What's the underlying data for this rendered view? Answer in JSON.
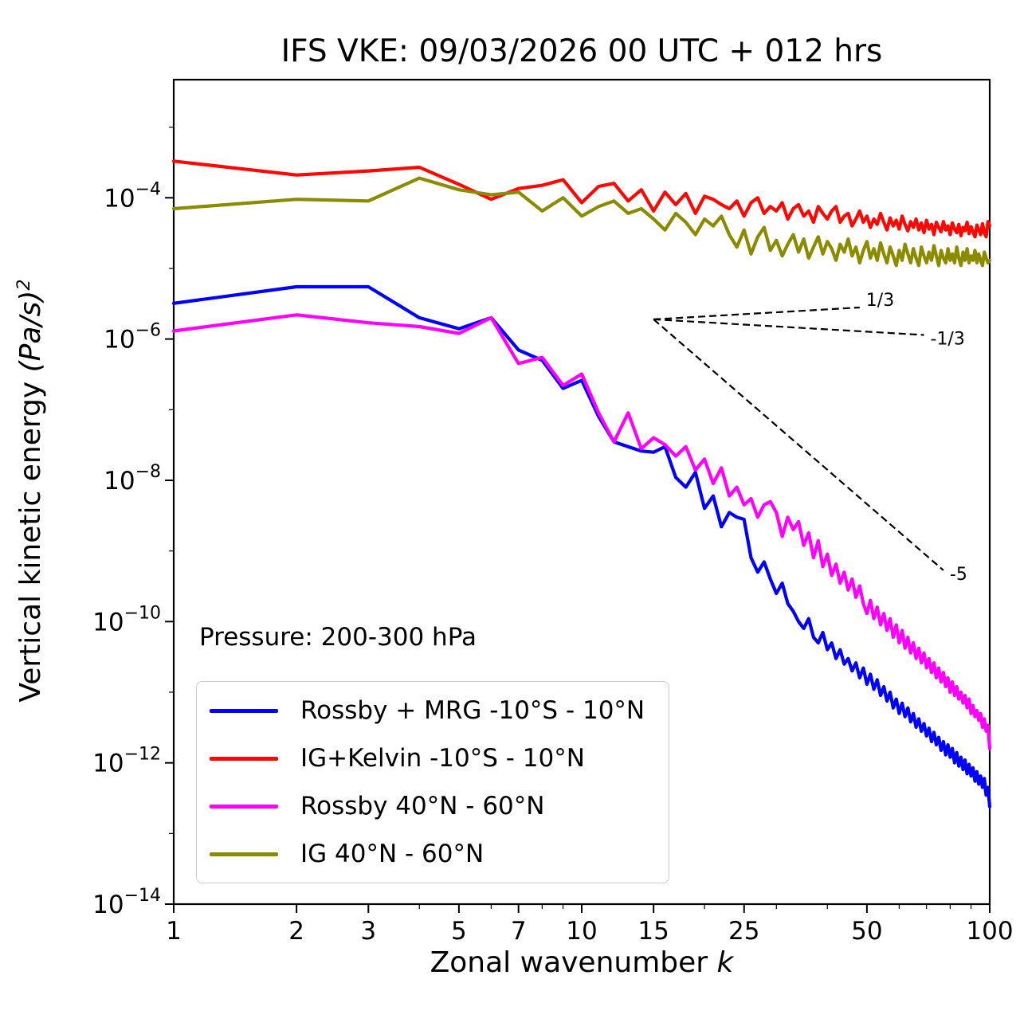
{
  "chart_data": {
    "type": "line",
    "title": "IFS VKE: 09/03/2026 00 UTC + 012 hrs",
    "xlabel_main": "Zonal wavenumber ",
    "xlabel_math": "k",
    "ylabel_main": "Vertical kinetic energy ",
    "ylabel_math": "(Pa/s)",
    "ylabel_sup": "2",
    "annotation": "Pressure: 200-300 hPa",
    "x_scale": "log",
    "y_scale": "log",
    "grid": false,
    "legend_position": "lower left",
    "xlim": [
      1,
      100
    ],
    "ylim": [
      1e-14,
      0.0047
    ],
    "x_ticks": [
      1,
      2,
      3,
      5,
      7,
      10,
      15,
      25,
      50,
      100
    ],
    "x_minor_ticks": [
      4,
      6,
      8,
      9,
      20,
      30,
      40,
      60,
      70,
      80,
      90
    ],
    "y_tick_exponents": [
      -4,
      -6,
      -8,
      -10,
      -12,
      -14
    ],
    "y_minor_tick_exponents": [
      -3,
      -5,
      -7,
      -9,
      -11,
      -13
    ],
    "axis_color": "#000000",
    "x": [
      1,
      2,
      3,
      4,
      5,
      6,
      7,
      8,
      9,
      10,
      11,
      12,
      13,
      14,
      15,
      16,
      17,
      18,
      19,
      20,
      21,
      22,
      23,
      24,
      25,
      26,
      27,
      28,
      29,
      30,
      31,
      32,
      33,
      34,
      35,
      36,
      37,
      38,
      39,
      40,
      41,
      42,
      43,
      44,
      45,
      46,
      47,
      48,
      49,
      50,
      51,
      52,
      53,
      54,
      55,
      56,
      57,
      58,
      59,
      60,
      61,
      62,
      63,
      64,
      65,
      66,
      67,
      68,
      69,
      70,
      71,
      72,
      73,
      74,
      75,
      76,
      77,
      78,
      79,
      80,
      81,
      82,
      83,
      84,
      85,
      86,
      87,
      88,
      89,
      90,
      91,
      92,
      93,
      94,
      95,
      96,
      97,
      98,
      99,
      100
    ],
    "series": [
      {
        "name": "Rossby + MRG -10°S - 10°N",
        "color": "#0000ff",
        "values": [
          3.2e-06,
          5.5e-06,
          5.5e-06,
          2e-06,
          1.4e-06,
          2e-06,
          7e-07,
          5e-07,
          2e-07,
          2.6e-07,
          8e-08,
          3.5e-08,
          3e-08,
          2.6e-08,
          2.5e-08,
          3e-08,
          1.1e-08,
          8e-09,
          1.3e-08,
          4e-09,
          6e-09,
          2.2e-09,
          3.5e-09,
          3e-09,
          2.8e-09,
          8e-10,
          5e-10,
          7e-10,
          4e-10,
          2.5e-10,
          3.5e-10,
          1.8e-10,
          1.4e-10,
          1e-10,
          8e-11,
          1.1e-10,
          6e-11,
          5e-11,
          7e-11,
          4e-11,
          5e-11,
          3e-11,
          4e-11,
          2.5e-11,
          3e-11,
          2e-11,
          2.6e-11,
          1.6e-11,
          2.2e-11,
          1.3e-11,
          1.8e-11,
          1.1e-11,
          1.5e-11,
          9e-12,
          1.2e-11,
          7.5e-12,
          1e-11,
          6e-12,
          8e-12,
          5e-12,
          7e-12,
          4.5e-12,
          6e-12,
          3.8e-12,
          5e-12,
          3.2e-12,
          4.2e-12,
          2.8e-12,
          3.6e-12,
          2.4e-12,
          3.1e-12,
          2e-12,
          2.7e-12,
          1.8e-12,
          2.3e-12,
          1.5e-12,
          2e-12,
          1.3e-12,
          1.8e-12,
          1.2e-12,
          1.6e-12,
          1e-12,
          1.4e-12,
          9e-13,
          1.2e-12,
          8e-13,
          1.1e-12,
          7e-13,
          9.5e-13,
          6.5e-13,
          8.5e-13,
          5.5e-13,
          7.5e-13,
          5e-13,
          6.5e-13,
          4.5e-13,
          6e-13,
          3.5e-13,
          4.5e-13,
          2.4e-13
        ]
      },
      {
        "name": "IG+Kelvin -10°S - 10°N",
        "color": "#ff0600",
        "values": [
          0.00033,
          0.00021,
          0.00024,
          0.00027,
          0.000155,
          9.5e-05,
          0.000135,
          0.00015,
          0.00018,
          8.5e-05,
          0.000145,
          0.00016,
          9e-05,
          0.00013,
          6.5e-05,
          0.00012,
          8e-05,
          0.000115,
          6e-05,
          0.000105,
          9.5e-05,
          8e-05,
          7e-05,
          9e-05,
          5.5e-05,
          8.5e-05,
          0.0001,
          6e-05,
          7.5e-05,
          6.5e-05,
          8.5e-05,
          5e-05,
          7e-05,
          8e-05,
          5.5e-05,
          6.5e-05,
          4.5e-05,
          7.5e-05,
          6e-05,
          5e-05,
          6.5e-05,
          7.5e-05,
          4.5e-05,
          5.5e-05,
          6e-05,
          4e-05,
          5e-05,
          6.5e-05,
          4.5e-05,
          5.5e-05,
          3.8e-05,
          5e-05,
          4.2e-05,
          6e-05,
          4.5e-05,
          3.5e-05,
          5.2e-05,
          4e-05,
          4.8e-05,
          3.6e-05,
          5.5e-05,
          4.2e-05,
          3.4e-05,
          4.6e-05,
          3.8e-05,
          5e-05,
          3.5e-05,
          4.4e-05,
          3.2e-05,
          4.8e-05,
          3.6e-05,
          4.2e-05,
          3e-05,
          4.5e-05,
          3.8e-05,
          3.3e-05,
          4.6e-05,
          3.5e-05,
          4e-05,
          3e-05,
          4.4e-05,
          3.6e-05,
          3.2e-05,
          4.2e-05,
          2.9e-05,
          3.8e-05,
          3.4e-05,
          4.5e-05,
          3.1e-05,
          3.9e-05,
          3.3e-05,
          2.8e-05,
          4.1e-05,
          3.5e-05,
          3e-05,
          4.3e-05,
          3.2e-05,
          2.8e-05,
          4.6e-05,
          4e-05
        ]
      },
      {
        "name": "Rossby 40°N - 60°N",
        "color": "#ff00ff",
        "values": [
          1.3e-06,
          2.2e-06,
          1.7e-06,
          1.5e-06,
          1.2e-06,
          2e-06,
          4.5e-07,
          5.5e-07,
          2.2e-07,
          3.2e-07,
          9e-08,
          3.5e-08,
          9e-08,
          2.8e-08,
          4e-08,
          3.2e-08,
          2.2e-08,
          3e-08,
          1.4e-08,
          2e-08,
          9e-09,
          1.5e-08,
          6e-09,
          8e-09,
          4.5e-09,
          5.5e-09,
          3e-09,
          4.5e-09,
          5e-09,
          3.5e-09,
          1.6e-09,
          3e-09,
          2e-09,
          2.6e-09,
          1.2e-09,
          1.8e-09,
          8e-10,
          1.4e-09,
          6e-10,
          9e-10,
          4.5e-10,
          6.5e-10,
          3.5e-10,
          5e-10,
          2.8e-10,
          4e-10,
          2.2e-10,
          3.2e-10,
          1.8e-10,
          1.3e-10,
          2e-10,
          1.1e-10,
          1.6e-10,
          9e-11,
          1.3e-10,
          7.5e-11,
          1.1e-10,
          6e-11,
          9e-11,
          5e-11,
          7.5e-11,
          4.2e-11,
          6e-11,
          3.6e-11,
          5e-11,
          3e-11,
          4.2e-11,
          2.6e-11,
          3.6e-11,
          2.2e-11,
          3e-11,
          1.9e-11,
          2.6e-11,
          1.6e-11,
          2.2e-11,
          1.4e-11,
          1.9e-11,
          1.2e-11,
          1.6e-11,
          1e-11,
          1.4e-11,
          9e-12,
          1.2e-11,
          8e-12,
          1e-11,
          7e-12,
          9e-12,
          6e-12,
          8e-12,
          5e-12,
          6.5e-12,
          4.5e-12,
          5.5e-12,
          4e-12,
          5e-12,
          3.2e-12,
          4.2e-12,
          2.8e-12,
          3.4e-12,
          1.6e-12
        ]
      },
      {
        "name": "IG 40°N - 60°N",
        "color": "#8b8b00",
        "values": [
          7e-05,
          9.5e-05,
          9e-05,
          0.00019,
          0.00013,
          0.00011,
          0.00012,
          6.5e-05,
          0.0001,
          5.5e-05,
          7.5e-05,
          9e-05,
          6e-05,
          7e-05,
          5e-05,
          3.5e-05,
          6e-05,
          4.5e-05,
          3e-05,
          5e-05,
          4e-05,
          5.5e-05,
          3e-05,
          2e-05,
          3.5e-05,
          1.6e-05,
          2.8e-05,
          3.8e-05,
          1.8e-05,
          2.5e-05,
          1.5e-05,
          2.2e-05,
          3e-05,
          1.7e-05,
          2.6e-05,
          1.4e-05,
          2e-05,
          2.8e-05,
          1.6e-05,
          2.4e-05,
          1.9e-05,
          1.3e-05,
          2.2e-05,
          1.7e-05,
          2.6e-05,
          1.5e-05,
          2e-05,
          1.2e-05,
          1.8e-05,
          2.4e-05,
          1.4e-05,
          1.9e-05,
          1.3e-05,
          2.3e-05,
          1.6e-05,
          1.2e-05,
          2e-05,
          1.5e-05,
          1.1e-05,
          1.8e-05,
          1.3e-05,
          2.2e-05,
          1.6e-05,
          1.2e-05,
          1.9e-05,
          1.4e-05,
          1.1e-05,
          2e-05,
          1.5e-05,
          1.2e-05,
          1.7e-05,
          1.3e-05,
          2.1e-05,
          1.5e-05,
          1.1e-05,
          1.8e-05,
          1.4e-05,
          1.2e-05,
          1.9e-05,
          1.3e-05,
          1.6e-05,
          1.2e-05,
          2e-05,
          1.4e-05,
          1.1e-05,
          1.7e-05,
          1.3e-05,
          1.9e-05,
          1.2e-05,
          1.5e-05,
          1.3e-05,
          1.8e-05,
          1.2e-05,
          1.6e-05,
          1.3e-05,
          1.1e-05,
          1.7e-05,
          1.4e-05,
          1.2e-05,
          1.3e-05
        ]
      }
    ],
    "slope_guides": {
      "color": "#000000",
      "anchor": {
        "k": 15,
        "v": 1.9e-06
      },
      "lines": [
        {
          "label": "1/3",
          "slope": 0.33333,
          "k_end": 48
        },
        {
          "label": "-1/3",
          "slope": -0.33333,
          "k_end": 69
        },
        {
          "label": "-5",
          "slope": -5,
          "k_end": 77
        }
      ]
    }
  }
}
